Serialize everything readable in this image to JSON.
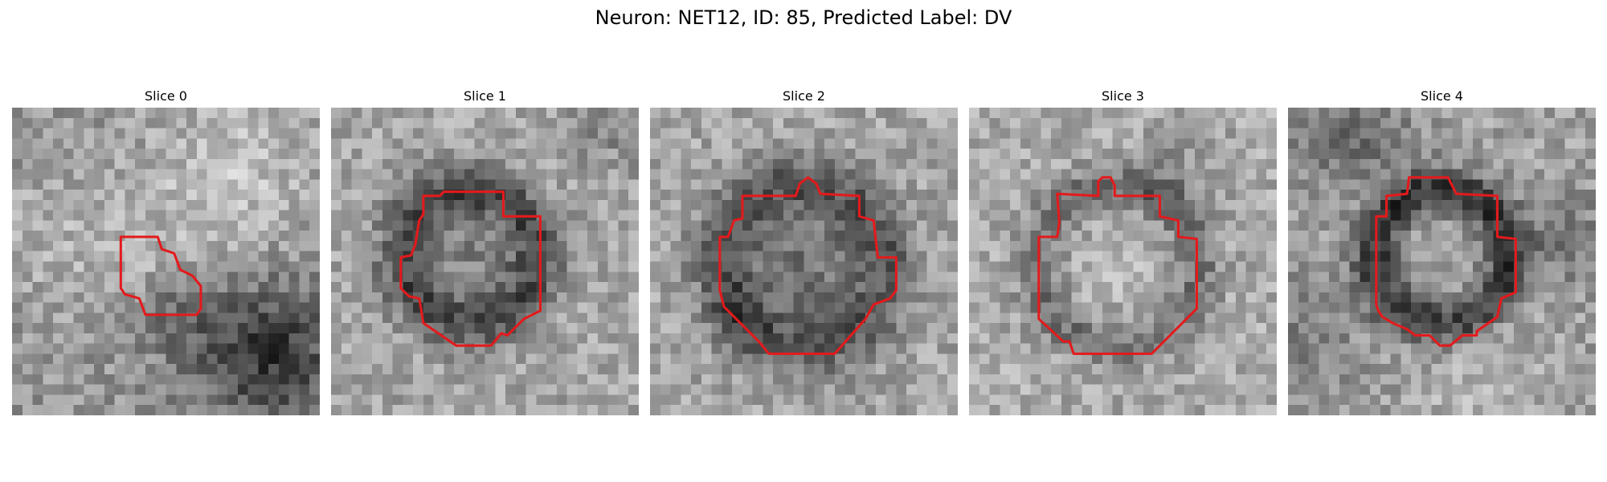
{
  "figure": {
    "title": "Neuron: NET12, ID: 85, Predicted Label: DV"
  },
  "slices": [
    {
      "label": "Slice 0"
    },
    {
      "label": "Slice 1"
    },
    {
      "label": "Slice 2"
    },
    {
      "label": "Slice 3"
    },
    {
      "label": "Slice 4"
    }
  ],
  "colors": {
    "contour": "#e31a1c",
    "background": "#ffffff"
  },
  "image_content": {
    "type": "grayscale microscopy crops with red segmentation contour",
    "grid": "30x30 pixels per crop"
  }
}
